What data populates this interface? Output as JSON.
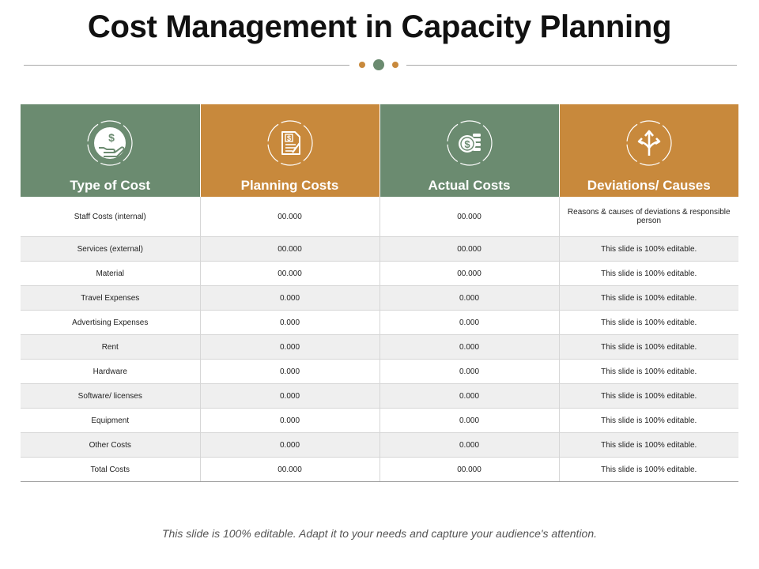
{
  "title": "Cost Management in Capacity Planning",
  "colors": {
    "green": "#6b8b70",
    "orange": "#c8893c",
    "row_alt": "#efefef"
  },
  "headers": [
    {
      "label": "Type of Cost",
      "icon": "dollar-hand-icon",
      "color": "#6b8b70"
    },
    {
      "label": "Planning Costs",
      "icon": "dollar-document-icon",
      "color": "#c8893c"
    },
    {
      "label": "Actual Costs",
      "icon": "coins-icon",
      "color": "#6b8b70"
    },
    {
      "label": "Deviations/ Causes",
      "icon": "split-arrows-icon",
      "color": "#c8893c"
    }
  ],
  "rows": [
    [
      "Staff Costs (internal)",
      "00.000",
      "00.000",
      "Reasons & causes of deviations & responsible person"
    ],
    [
      "Services (external)",
      "00.000",
      "00.000",
      "This slide is 100% editable."
    ],
    [
      "Material",
      "00.000",
      "00.000",
      "This slide is 100% editable."
    ],
    [
      "Travel Expenses",
      "0.000",
      "0.000",
      "This slide is 100% editable."
    ],
    [
      "Advertising Expenses",
      "0.000",
      "0.000",
      "This slide is 100% editable."
    ],
    [
      "Rent",
      "0.000",
      "0.000",
      "This slide is 100% editable."
    ],
    [
      "Hardware",
      "0.000",
      "0.000",
      "This slide is 100% editable."
    ],
    [
      "Software/ licenses",
      "0.000",
      "0.000",
      "This slide is 100% editable."
    ],
    [
      "Equipment",
      "0.000",
      "0.000",
      "This slide is 100% editable."
    ],
    [
      "Other Costs",
      "0.000",
      "0.000",
      "This slide is 100% editable."
    ],
    [
      "Total Costs",
      "00.000",
      "00.000",
      "This slide is 100% editable."
    ]
  ],
  "footer": "This slide is 100% editable. Adapt it to your needs and capture your audience's attention."
}
